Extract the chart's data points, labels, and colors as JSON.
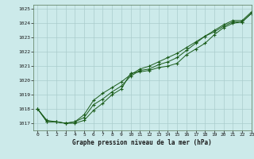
{
  "title": "Graphe pression niveau de la mer (hPa)",
  "bg_color": "#cceaea",
  "grid_color": "#aacccc",
  "line_color": "#1a5c1a",
  "marker_color": "#1a5c1a",
  "xlim": [
    -0.5,
    23
  ],
  "ylim": [
    1016.5,
    1025.3
  ],
  "yticks": [
    1017,
    1018,
    1019,
    1020,
    1021,
    1022,
    1023,
    1024,
    1025
  ],
  "xticks": [
    0,
    1,
    2,
    3,
    4,
    5,
    6,
    7,
    8,
    9,
    10,
    11,
    12,
    13,
    14,
    15,
    16,
    17,
    18,
    19,
    20,
    21,
    22,
    23
  ],
  "series": [
    [
      1018.0,
      1017.2,
      1017.1,
      1017.0,
      1017.0,
      1017.2,
      1017.9,
      1018.4,
      1019.0,
      1019.4,
      1020.5,
      1020.6,
      1020.7,
      1020.9,
      1021.0,
      1021.2,
      1021.8,
      1022.2,
      1022.6,
      1023.2,
      1023.7,
      1024.0,
      1024.1,
      1024.7
    ],
    [
      1018.0,
      1017.1,
      1017.1,
      1017.0,
      1017.1,
      1017.4,
      1018.3,
      1018.7,
      1019.2,
      1019.6,
      1020.3,
      1020.7,
      1020.8,
      1021.1,
      1021.3,
      1021.6,
      1022.1,
      1022.6,
      1023.1,
      1023.4,
      1023.8,
      1024.1,
      1024.1,
      1024.7
    ],
    [
      1018.0,
      1017.1,
      1017.1,
      1017.0,
      1017.1,
      1017.6,
      1018.6,
      1019.1,
      1019.5,
      1019.9,
      1020.4,
      1020.8,
      1021.0,
      1021.3,
      1021.6,
      1021.9,
      1022.3,
      1022.7,
      1023.1,
      1023.5,
      1023.9,
      1024.2,
      1024.2,
      1024.8
    ]
  ]
}
